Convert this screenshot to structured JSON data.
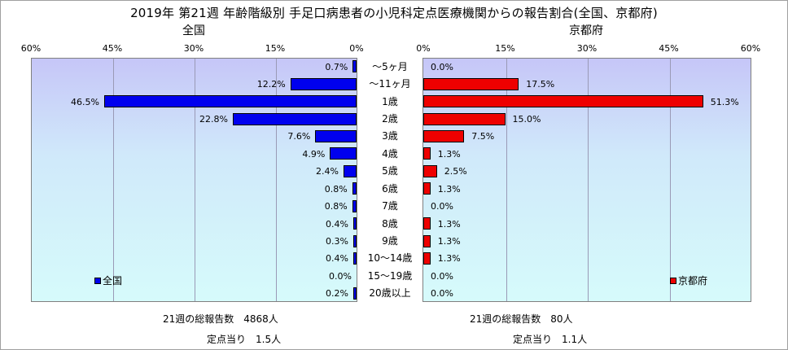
{
  "title": "2019年 第21週 年齢階級別 手足口病患者の小児科定点医療機関からの報告割合(全国、京都府)",
  "chart_data": [
    {
      "type": "bar",
      "orientation": "horizontal",
      "direction": "right-to-left",
      "subtitle": "全国",
      "series_name": "全国",
      "legend_position": "bottom-left",
      "xlim": [
        0,
        60
      ],
      "tick_labels": [
        "60%",
        "45%",
        "30%",
        "15%",
        "0%"
      ],
      "tick_values": [
        60,
        45,
        30,
        15,
        0
      ],
      "grid": true,
      "color": "#0000ee",
      "values": [
        0.7,
        12.2,
        46.5,
        22.8,
        7.6,
        4.9,
        2.4,
        0.8,
        0.8,
        0.4,
        0.3,
        0.4,
        0.0,
        0.2
      ],
      "value_labels": [
        "0.7%",
        "12.2%",
        "46.5%",
        "22.8%",
        "7.6%",
        "4.9%",
        "2.4%",
        "0.8%",
        "0.8%",
        "0.4%",
        "0.3%",
        "0.4%",
        "0.0%",
        "0.2%"
      ]
    },
    {
      "type": "bar",
      "orientation": "horizontal",
      "direction": "left-to-right",
      "subtitle": "京都府",
      "series_name": "京都府",
      "legend_position": "bottom-right",
      "xlim": [
        0,
        60
      ],
      "tick_labels": [
        "0%",
        "15%",
        "30%",
        "45%",
        "60%"
      ],
      "tick_values": [
        0,
        15,
        30,
        45,
        60
      ],
      "grid": true,
      "color": "#ee0000",
      "values": [
        0.0,
        17.5,
        51.3,
        15.0,
        7.5,
        1.3,
        2.5,
        1.3,
        0.0,
        1.3,
        1.3,
        1.3,
        0.0,
        0.0
      ],
      "value_labels": [
        "0.0%",
        "17.5%",
        "51.3%",
        "15.0%",
        "7.5%",
        "1.3%",
        "2.5%",
        "1.3%",
        "0.0%",
        "1.3%",
        "1.3%",
        "1.3%",
        "0.0%",
        "0.0%"
      ]
    }
  ],
  "categories": [
    "～5ヶ月",
    "～11ヶ月",
    "1歳",
    "2歳",
    "3歳",
    "4歳",
    "5歳",
    "6歳",
    "7歳",
    "8歳",
    "9歳",
    "10～14歳",
    "15～19歳",
    "20歳以上"
  ],
  "footer": {
    "national": {
      "total": "21週の総報告数　4868人",
      "per_point": "定点当り　1.5人"
    },
    "kyoto": {
      "total": "21週の総報告数　80人",
      "per_point": "定点当り　1.1人"
    }
  }
}
